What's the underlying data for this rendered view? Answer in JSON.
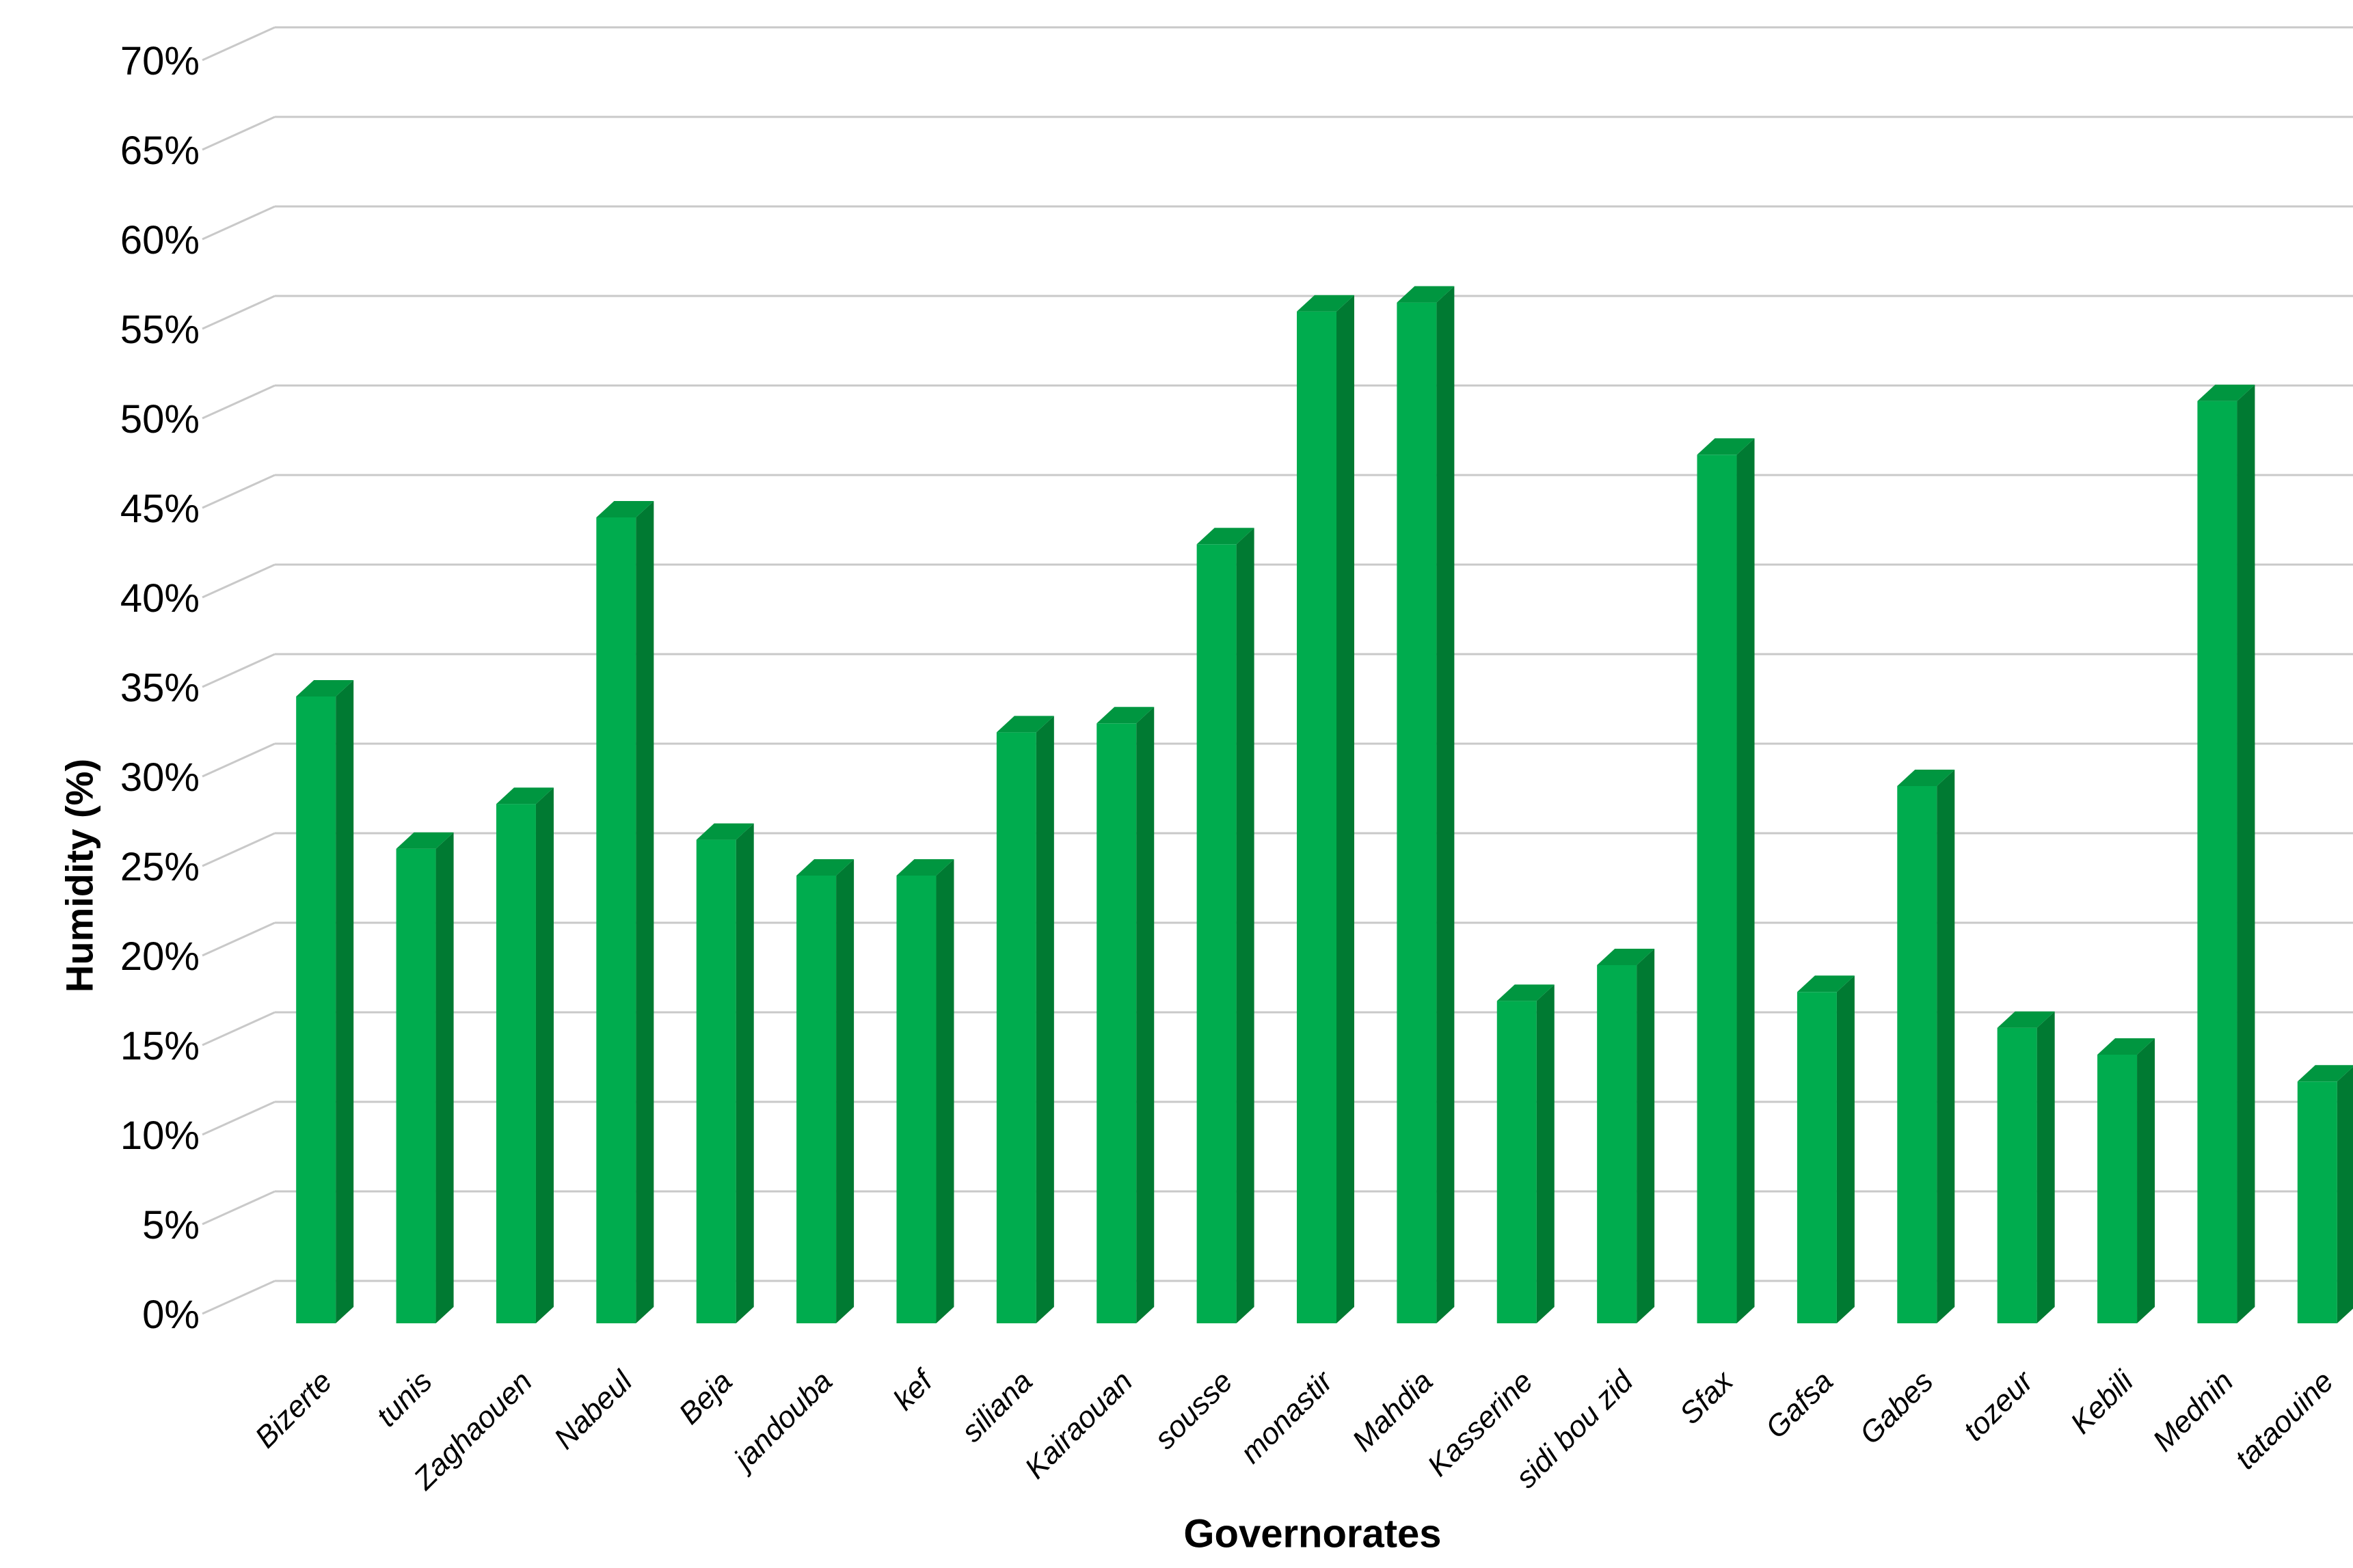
{
  "chart_data": {
    "type": "bar",
    "style": "3d-column",
    "title": "",
    "xlabel": "Governorates",
    "ylabel": "Humidity (%)",
    "categories": [
      "Bizerte",
      "tunis",
      "Zaghaouen",
      "Nabeul",
      "Beja",
      "jandouba",
      "kef",
      "siliana",
      "Kairaouan",
      "sousse",
      "monastir",
      "Mahdia",
      "Kasserine",
      "sidi bou zid",
      "Sfax",
      "Gafsa",
      "Gabes",
      "tozeur",
      "Kebili",
      "Mednin",
      "tataouine"
    ],
    "values": [
      35,
      26.5,
      29,
      45,
      27,
      25,
      25,
      33,
      33.5,
      43.5,
      56.5,
      57,
      18,
      20,
      48.5,
      18.5,
      30,
      16.5,
      15,
      51.5,
      13.5
    ],
    "value_unit": "%",
    "y_ticks": [
      "70%",
      "65%",
      "60%",
      "55%",
      "50%",
      "45%",
      "40%",
      "35%",
      "30%",
      "25%",
      "20%",
      "15%",
      "10%",
      "5%",
      "0%"
    ],
    "ylim": [
      0,
      70
    ],
    "y_tick_step": 5,
    "grid": "horizontal",
    "legend": "none",
    "colors": {
      "bar_front": "#00AC4E",
      "bar_side": "#007A32",
      "bar_top": "#009640",
      "gridline": "#C9C9C9",
      "text": "#000000",
      "background": "#FFFFFF"
    }
  }
}
